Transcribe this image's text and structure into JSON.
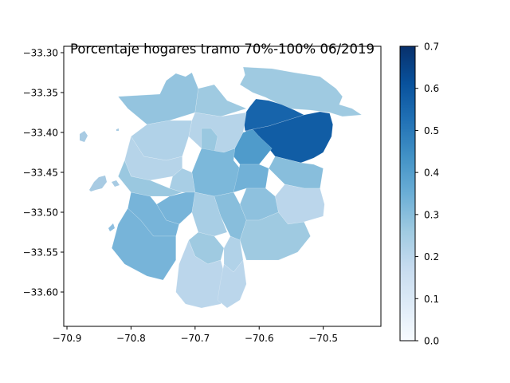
{
  "chart_data": {
    "type": "choropleth",
    "title": "Porcentaje hogares tramo 70%-100% 06/2019",
    "xlabel": "",
    "ylabel": "",
    "xlim": [
      -70.905,
      -70.41
    ],
    "ylim": [
      -33.643,
      -33.292
    ],
    "x_ticks": [
      {
        "value": -70.9,
        "label": "−70.9"
      },
      {
        "value": -70.8,
        "label": "−70.8"
      },
      {
        "value": -70.7,
        "label": "−70.7"
      },
      {
        "value": -70.6,
        "label": "−70.6"
      },
      {
        "value": -70.5,
        "label": "−70.5"
      }
    ],
    "y_ticks": [
      {
        "value": -33.3,
        "label": "−33.30"
      },
      {
        "value": -33.35,
        "label": "−33.35"
      },
      {
        "value": -33.4,
        "label": "−33.40"
      },
      {
        "value": -33.45,
        "label": "−33.45"
      },
      {
        "value": -33.5,
        "label": "−33.50"
      },
      {
        "value": -33.55,
        "label": "−33.55"
      },
      {
        "value": -33.6,
        "label": "−33.60"
      }
    ],
    "colorbar": {
      "colormap": "Blues",
      "range": [
        0.0,
        0.7
      ],
      "ticks": [
        {
          "value": 0.0,
          "label": "0.0"
        },
        {
          "value": 0.1,
          "label": "0.1"
        },
        {
          "value": 0.2,
          "label": "0.2"
        },
        {
          "value": 0.3,
          "label": "0.3"
        },
        {
          "value": 0.4,
          "label": "0.4"
        },
        {
          "value": 0.5,
          "label": "0.5"
        },
        {
          "value": 0.6,
          "label": "0.6"
        },
        {
          "value": 0.7,
          "label": "0.7"
        }
      ]
    },
    "regions": [
      {
        "value": 0.28,
        "points": [
          [
            -70.73,
            -33.326
          ],
          [
            -70.715,
            -33.33
          ],
          [
            -70.705,
            -33.325
          ],
          [
            -70.695,
            -33.345
          ],
          [
            -70.7,
            -33.375
          ],
          [
            -70.74,
            -33.385
          ],
          [
            -70.775,
            -33.39
          ],
          [
            -70.805,
            -33.37
          ],
          [
            -70.82,
            -33.355
          ],
          [
            -70.755,
            -33.352
          ],
          [
            -70.745,
            -33.335
          ]
        ]
      },
      {
        "value": 0.26,
        "points": [
          [
            -70.625,
            -33.318
          ],
          [
            -70.58,
            -33.32
          ],
          [
            -70.545,
            -33.325
          ],
          [
            -70.505,
            -33.33
          ],
          [
            -70.48,
            -33.345
          ],
          [
            -70.47,
            -33.355
          ],
          [
            -70.475,
            -33.365
          ],
          [
            -70.455,
            -33.37
          ],
          [
            -70.44,
            -33.378
          ],
          [
            -70.47,
            -33.38
          ],
          [
            -70.49,
            -33.375
          ],
          [
            -70.52,
            -33.372
          ],
          [
            -70.555,
            -33.37
          ],
          [
            -70.59,
            -33.356
          ],
          [
            -70.61,
            -33.35
          ],
          [
            -70.63,
            -33.34
          ],
          [
            -70.622,
            -33.328
          ]
        ]
      },
      {
        "value": 0.26,
        "points": [
          [
            -70.695,
            -33.345
          ],
          [
            -70.67,
            -33.34
          ],
          [
            -70.65,
            -33.36
          ],
          [
            -70.62,
            -33.37
          ],
          [
            -70.66,
            -33.38
          ],
          [
            -70.7,
            -33.375
          ]
        ]
      },
      {
        "value": 0.56,
        "points": [
          [
            -70.605,
            -33.358
          ],
          [
            -70.585,
            -33.36
          ],
          [
            -70.565,
            -33.365
          ],
          [
            -70.545,
            -33.372
          ],
          [
            -70.53,
            -33.378
          ],
          [
            -70.585,
            -33.392
          ],
          [
            -70.61,
            -33.396
          ],
          [
            -70.622,
            -33.398
          ],
          [
            -70.625,
            -33.38
          ],
          [
            -70.615,
            -33.368
          ]
        ]
      },
      {
        "value": 0.58,
        "points": [
          [
            -70.53,
            -33.378
          ],
          [
            -70.505,
            -33.374
          ],
          [
            -70.49,
            -33.376
          ],
          [
            -70.485,
            -33.39
          ],
          [
            -70.487,
            -33.405
          ],
          [
            -70.5,
            -33.425
          ],
          [
            -70.515,
            -33.432
          ],
          [
            -70.535,
            -33.438
          ],
          [
            -70.575,
            -33.43
          ],
          [
            -70.585,
            -33.42
          ],
          [
            -70.6,
            -33.405
          ],
          [
            -70.622,
            -33.398
          ],
          [
            -70.61,
            -33.396
          ],
          [
            -70.585,
            -33.392
          ]
        ]
      },
      {
        "value": 0.21,
        "points": [
          [
            -70.7,
            -33.375
          ],
          [
            -70.66,
            -33.38
          ],
          [
            -70.62,
            -33.375
          ],
          [
            -70.625,
            -33.4
          ],
          [
            -70.638,
            -33.42
          ],
          [
            -70.655,
            -33.425
          ],
          [
            -70.69,
            -33.42
          ],
          [
            -70.71,
            -33.405
          ],
          [
            -70.705,
            -33.385
          ]
        ]
      },
      {
        "value": 0.27,
        "points": [
          [
            -70.69,
            -33.395
          ],
          [
            -70.675,
            -33.395
          ],
          [
            -70.665,
            -33.405
          ],
          [
            -70.67,
            -33.425
          ],
          [
            -70.69,
            -33.42
          ],
          [
            -70.69,
            -33.405
          ]
        ]
      },
      {
        "value": 0.22,
        "points": [
          [
            -70.775,
            -33.39
          ],
          [
            -70.74,
            -33.385
          ],
          [
            -70.705,
            -33.385
          ],
          [
            -70.71,
            -33.405
          ],
          [
            -70.72,
            -33.43
          ],
          [
            -70.745,
            -33.435
          ],
          [
            -70.78,
            -33.43
          ],
          [
            -70.8,
            -33.405
          ]
        ]
      },
      {
        "value": 0.41,
        "points": [
          [
            -70.638,
            -33.42
          ],
          [
            -70.625,
            -33.4
          ],
          [
            -70.61,
            -33.396
          ],
          [
            -70.6,
            -33.405
          ],
          [
            -70.58,
            -33.42
          ],
          [
            -70.6,
            -33.44
          ],
          [
            -70.63,
            -33.44
          ],
          [
            -70.64,
            -33.43
          ]
        ]
      },
      {
        "value": 0.21,
        "points": [
          [
            -70.8,
            -33.405
          ],
          [
            -70.78,
            -33.43
          ],
          [
            -70.745,
            -33.435
          ],
          [
            -70.72,
            -33.43
          ],
          [
            -70.72,
            -33.445
          ],
          [
            -70.735,
            -33.455
          ],
          [
            -70.77,
            -33.46
          ],
          [
            -70.8,
            -33.455
          ],
          [
            -70.81,
            -33.435
          ]
        ]
      },
      {
        "value": 0.32,
        "points": [
          [
            -70.69,
            -33.42
          ],
          [
            -70.655,
            -33.425
          ],
          [
            -70.638,
            -33.42
          ],
          [
            -70.64,
            -33.435
          ],
          [
            -70.63,
            -33.445
          ],
          [
            -70.64,
            -33.475
          ],
          [
            -70.67,
            -33.48
          ],
          [
            -70.7,
            -33.475
          ],
          [
            -70.705,
            -33.45
          ],
          [
            -70.695,
            -33.43
          ]
        ]
      },
      {
        "value": 0.3,
        "points": [
          [
            -70.575,
            -33.43
          ],
          [
            -70.535,
            -33.438
          ],
          [
            -70.515,
            -33.44
          ],
          [
            -70.5,
            -33.445
          ],
          [
            -70.505,
            -33.47
          ],
          [
            -70.53,
            -33.47
          ],
          [
            -70.56,
            -33.465
          ],
          [
            -70.585,
            -33.445
          ]
        ]
      },
      {
        "value": 0.34,
        "points": [
          [
            -70.63,
            -33.44
          ],
          [
            -70.6,
            -33.44
          ],
          [
            -70.585,
            -33.445
          ],
          [
            -70.59,
            -33.47
          ],
          [
            -70.62,
            -33.47
          ],
          [
            -70.64,
            -33.475
          ]
        ]
      },
      {
        "value": 0.24,
        "points": [
          [
            -70.72,
            -33.445
          ],
          [
            -70.705,
            -33.45
          ],
          [
            -70.7,
            -33.475
          ],
          [
            -70.72,
            -33.475
          ],
          [
            -70.74,
            -33.47
          ],
          [
            -70.735,
            -33.455
          ]
        ]
      },
      {
        "value": 0.27,
        "points": [
          [
            -70.81,
            -33.435
          ],
          [
            -70.8,
            -33.455
          ],
          [
            -70.77,
            -33.46
          ],
          [
            -70.74,
            -33.47
          ],
          [
            -70.72,
            -33.475
          ],
          [
            -70.74,
            -33.48
          ],
          [
            -70.77,
            -33.48
          ],
          [
            -70.8,
            -33.475
          ],
          [
            -70.82,
            -33.455
          ]
        ]
      },
      {
        "value": 0.2,
        "points": [
          [
            -70.56,
            -33.465
          ],
          [
            -70.53,
            -33.47
          ],
          [
            -70.505,
            -33.47
          ],
          [
            -70.498,
            -33.49
          ],
          [
            -70.5,
            -33.505
          ],
          [
            -70.53,
            -33.512
          ],
          [
            -70.555,
            -33.515
          ],
          [
            -70.57,
            -33.5
          ],
          [
            -70.575,
            -33.48
          ]
        ]
      },
      {
        "value": 0.29,
        "points": [
          [
            -70.62,
            -33.47
          ],
          [
            -70.59,
            -33.47
          ],
          [
            -70.575,
            -33.48
          ],
          [
            -70.57,
            -33.5
          ],
          [
            -70.6,
            -33.51
          ],
          [
            -70.62,
            -33.51
          ],
          [
            -70.63,
            -33.49
          ]
        ]
      },
      {
        "value": 0.24,
        "points": [
          [
            -70.7,
            -33.475
          ],
          [
            -70.67,
            -33.48
          ],
          [
            -70.66,
            -33.505
          ],
          [
            -70.65,
            -33.525
          ],
          [
            -70.67,
            -33.53
          ],
          [
            -70.695,
            -33.525
          ],
          [
            -70.705,
            -33.5
          ]
        ]
      },
      {
        "value": 0.3,
        "points": [
          [
            -70.67,
            -33.48
          ],
          [
            -70.64,
            -33.475
          ],
          [
            -70.63,
            -33.49
          ],
          [
            -70.62,
            -33.51
          ],
          [
            -70.63,
            -33.535
          ],
          [
            -70.645,
            -33.53
          ],
          [
            -70.66,
            -33.505
          ]
        ]
      },
      {
        "value": 0.33,
        "points": [
          [
            -70.74,
            -33.48
          ],
          [
            -70.715,
            -33.475
          ],
          [
            -70.7,
            -33.475
          ],
          [
            -70.705,
            -33.5
          ],
          [
            -70.725,
            -33.515
          ],
          [
            -70.745,
            -33.51
          ],
          [
            -70.76,
            -33.49
          ]
        ]
      },
      {
        "value": 0.33,
        "points": [
          [
            -70.8,
            -33.475
          ],
          [
            -70.77,
            -33.48
          ],
          [
            -70.76,
            -33.49
          ],
          [
            -70.745,
            -33.51
          ],
          [
            -70.725,
            -33.515
          ],
          [
            -70.73,
            -33.53
          ],
          [
            -70.765,
            -33.53
          ],
          [
            -70.785,
            -33.51
          ],
          [
            -70.805,
            -33.495
          ]
        ]
      },
      {
        "value": 0.26,
        "points": [
          [
            -70.695,
            -33.525
          ],
          [
            -70.67,
            -33.53
          ],
          [
            -70.655,
            -33.545
          ],
          [
            -70.66,
            -33.56
          ],
          [
            -70.68,
            -33.565
          ],
          [
            -70.7,
            -33.555
          ],
          [
            -70.71,
            -33.535
          ]
        ]
      },
      {
        "value": 0.22,
        "points": [
          [
            -70.645,
            -33.53
          ],
          [
            -70.63,
            -33.535
          ],
          [
            -70.625,
            -33.56
          ],
          [
            -70.64,
            -33.575
          ],
          [
            -70.655,
            -33.565
          ],
          [
            -70.655,
            -33.545
          ]
        ]
      },
      {
        "value": 0.26,
        "points": [
          [
            -70.6,
            -33.51
          ],
          [
            -70.57,
            -33.5
          ],
          [
            -70.555,
            -33.515
          ],
          [
            -70.53,
            -33.512
          ],
          [
            -70.52,
            -33.53
          ],
          [
            -70.54,
            -33.55
          ],
          [
            -70.57,
            -33.56
          ],
          [
            -70.6,
            -33.56
          ],
          [
            -70.62,
            -33.56
          ],
          [
            -70.63,
            -33.535
          ],
          [
            -70.62,
            -33.51
          ]
        ]
      },
      {
        "value": 0.33,
        "points": [
          [
            -70.805,
            -33.495
          ],
          [
            -70.785,
            -33.51
          ],
          [
            -70.765,
            -33.53
          ],
          [
            -70.73,
            -33.53
          ],
          [
            -70.73,
            -33.56
          ],
          [
            -70.75,
            -33.585
          ],
          [
            -70.775,
            -33.58
          ],
          [
            -70.81,
            -33.565
          ],
          [
            -70.83,
            -33.545
          ],
          [
            -70.82,
            -33.515
          ]
        ]
      },
      {
        "value": 0.2,
        "points": [
          [
            -70.71,
            -33.535
          ],
          [
            -70.7,
            -33.555
          ],
          [
            -70.68,
            -33.565
          ],
          [
            -70.66,
            -33.56
          ],
          [
            -70.65,
            -33.59
          ],
          [
            -70.66,
            -33.615
          ],
          [
            -70.69,
            -33.62
          ],
          [
            -70.715,
            -33.615
          ],
          [
            -70.73,
            -33.6
          ],
          [
            -70.725,
            -33.565
          ]
        ]
      },
      {
        "value": 0.2,
        "points": [
          [
            -70.655,
            -33.565
          ],
          [
            -70.64,
            -33.575
          ],
          [
            -70.625,
            -33.56
          ],
          [
            -70.62,
            -33.59
          ],
          [
            -70.63,
            -33.61
          ],
          [
            -70.65,
            -33.62
          ],
          [
            -70.665,
            -33.61
          ],
          [
            -70.66,
            -33.585
          ]
        ]
      }
    ]
  }
}
